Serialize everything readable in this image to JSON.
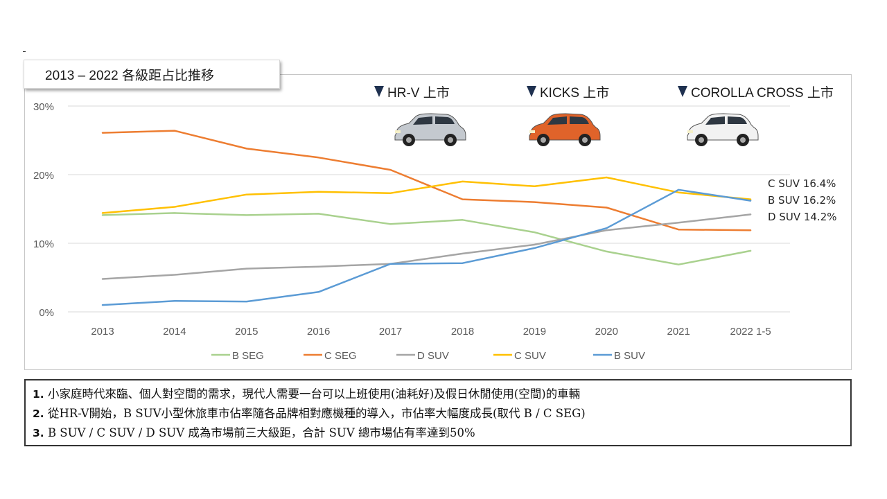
{
  "slide": {
    "title": "2013 – 2022 各級距占比推移",
    "launches": [
      {
        "label": "HR-V 上市",
        "year": "2016",
        "car_color": "#c4c9cf",
        "marker_color": "#1f3150"
      },
      {
        "label": "KICKS 上市",
        "year": "2019",
        "car_color": "#e0632a",
        "marker_color": "#1f3150"
      },
      {
        "label": "COROLLA CROSS 上市",
        "year": "2021",
        "car_color": "#f2f2f2",
        "marker_color": "#1f3150"
      }
    ],
    "end_labels": [
      "C SUV 16.4%",
      "B SUV 16.2%",
      "D SUV 14.2%"
    ],
    "notes": [
      {
        "num": "1.",
        "text": "小家庭時代來臨、個人對空間的需求，現代人需要一台可以上班使用(油耗好)及假日休閒使用(空間)的車輛"
      },
      {
        "num": "2.",
        "text": "從HR-V開始，B SUV小型休旅車市佔率隨各品牌相對應機種的導入，市佔率大幅度成長(取代 B / C SEG)"
      },
      {
        "num": "3.",
        "text": "B SUV / C SUV / D SUV 成為市場前三大級距，合計 SUV 總市場佔有率達到50%"
      }
    ]
  },
  "chart_data": {
    "type": "line",
    "x": [
      "2013",
      "2014",
      "2015",
      "2016",
      "2017",
      "2018",
      "2019",
      "2020",
      "2021",
      "2022 1-5"
    ],
    "ylim": [
      0,
      30
    ],
    "yticks": [
      0,
      10,
      20,
      30
    ],
    "ytick_labels": [
      "0%",
      "10%",
      "20%",
      "30%"
    ],
    "grid": true,
    "legend_position": "bottom",
    "series": [
      {
        "name": "B SEG",
        "color": "#a9d18e",
        "values": [
          14.1,
          14.4,
          14.1,
          14.3,
          12.8,
          13.4,
          11.6,
          8.8,
          6.9,
          8.9
        ]
      },
      {
        "name": "C SEG",
        "color": "#ed7d31",
        "values": [
          26.1,
          26.4,
          23.8,
          22.5,
          20.7,
          16.4,
          16.0,
          15.2,
          12.0,
          11.9
        ]
      },
      {
        "name": "D SUV",
        "color": "#a5a5a5",
        "values": [
          4.8,
          5.4,
          6.3,
          6.6,
          7.0,
          8.5,
          9.8,
          11.9,
          13.0,
          14.2
        ]
      },
      {
        "name": "C SUV",
        "color": "#ffc000",
        "values": [
          14.4,
          15.3,
          17.1,
          17.5,
          17.3,
          19.0,
          18.3,
          19.6,
          17.4,
          16.4
        ]
      },
      {
        "name": "B SUV",
        "color": "#5b9bd5",
        "values": [
          1.0,
          1.6,
          1.5,
          2.9,
          7.0,
          7.1,
          9.3,
          12.2,
          17.8,
          16.2
        ]
      }
    ]
  }
}
